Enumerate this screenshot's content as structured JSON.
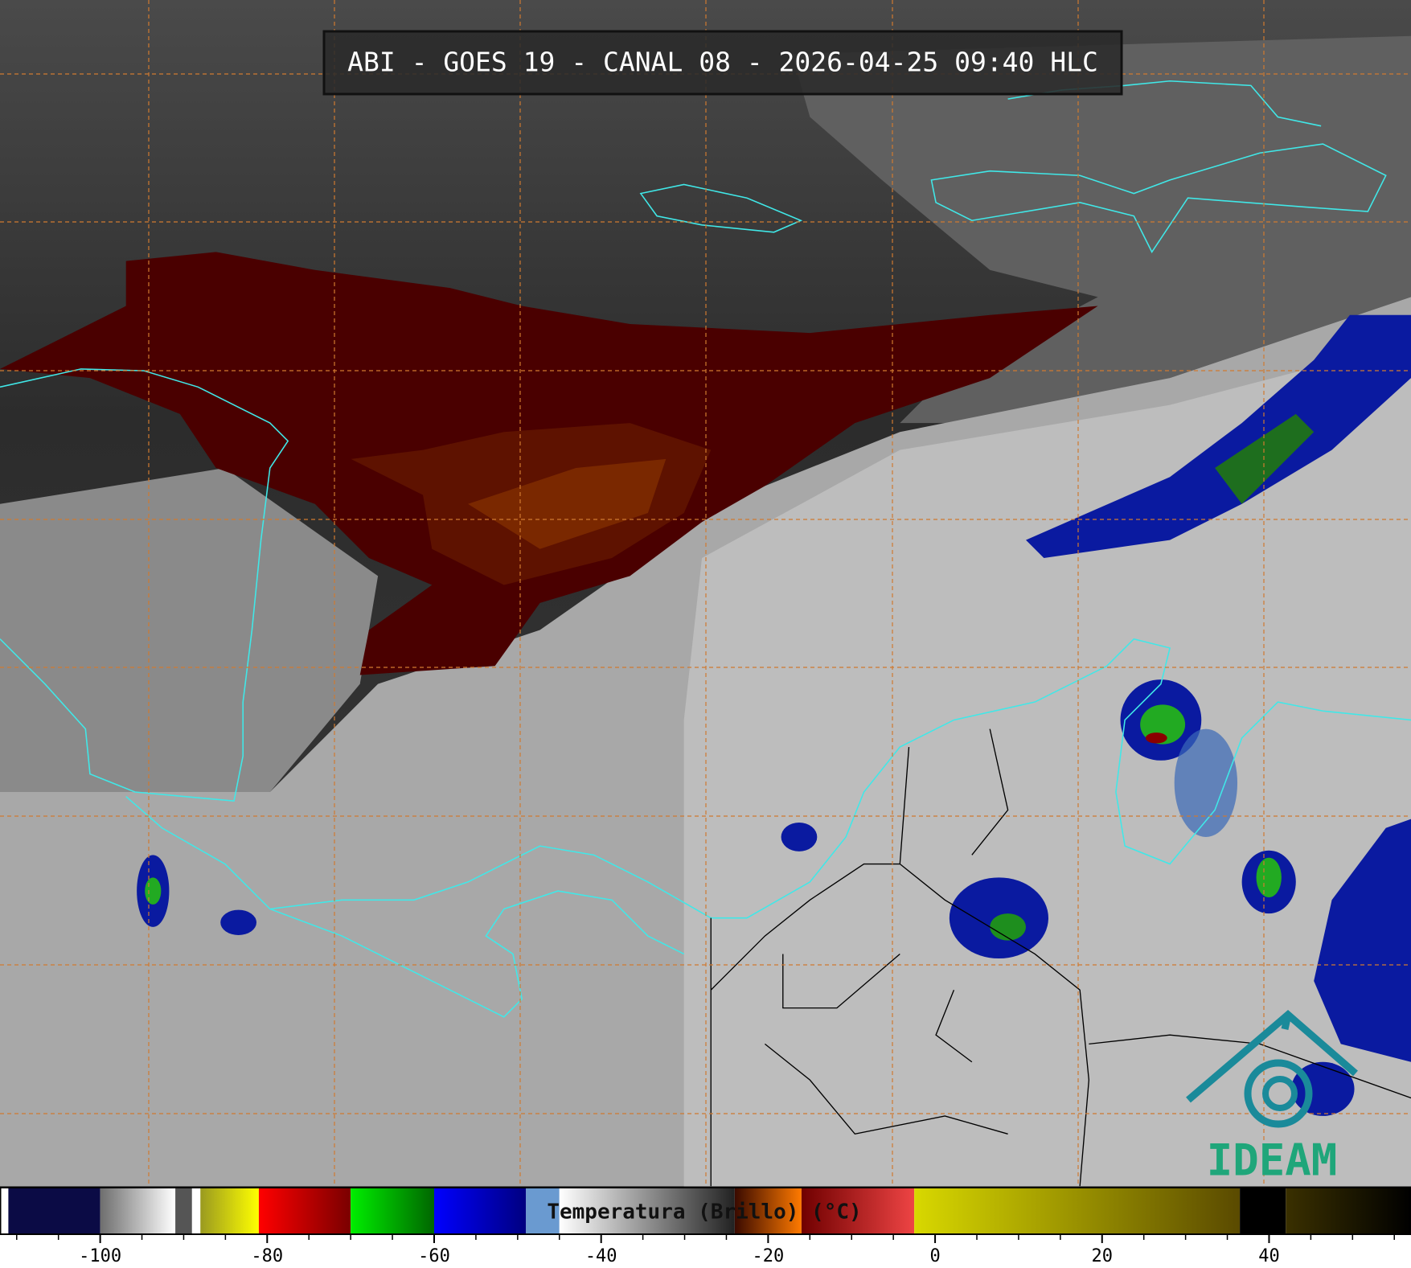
{
  "header": {
    "title": "ABI - GOES 19 - CANAL 08 - 2026-04-25 09:40 HLC"
  },
  "logo": {
    "text": "IDEAM"
  },
  "colorbar": {
    "label": "Temperatura (Brillo) (°C)",
    "lim": [
      -112,
      57
    ],
    "ticks": [
      -100,
      -80,
      -60,
      -40,
      -20,
      0,
      20,
      40
    ],
    "minor_ticks": [
      -110,
      -105,
      -95,
      -90,
      -85,
      -75,
      -70,
      -65,
      -55,
      -50,
      -45,
      -35,
      -30,
      -25,
      -15,
      -10,
      -5,
      5,
      10,
      15,
      25,
      30,
      35,
      45,
      50,
      55
    ],
    "segments": [
      {
        "from": -112,
        "to": -111,
        "colors": [
          "#ffffff",
          "#ffffff"
        ]
      },
      {
        "from": -111,
        "to": -100,
        "colors": [
          "#0b0b45",
          "#0b0b45"
        ]
      },
      {
        "from": -100,
        "to": -91,
        "colors": [
          "#6e6e6e",
          "#ffffff"
        ]
      },
      {
        "from": -91,
        "to": -89,
        "colors": [
          "#555555",
          "#555555"
        ]
      },
      {
        "from": -89,
        "to": -88,
        "colors": [
          "#ffffff",
          "#ffffff"
        ]
      },
      {
        "from": -88,
        "to": -81,
        "colors": [
          "#9a9a20",
          "#ffff00"
        ]
      },
      {
        "from": -81,
        "to": -70,
        "colors": [
          "#ff0000",
          "#7a0000"
        ]
      },
      {
        "from": -70,
        "to": -60,
        "colors": [
          "#00ee00",
          "#006600"
        ]
      },
      {
        "from": -60,
        "to": -49,
        "colors": [
          "#0000ff",
          "#000080"
        ]
      },
      {
        "from": -49,
        "to": -45,
        "colors": [
          "#6a9ad0",
          "#6a9ad0"
        ]
      },
      {
        "from": -45,
        "to": -24,
        "colors": [
          "#ffffff",
          "#222222"
        ]
      },
      {
        "from": -24,
        "to": -16,
        "colors": [
          "#3a0a00",
          "#ff7a00"
        ]
      },
      {
        "from": -16,
        "to": -2.5,
        "colors": [
          "#700000",
          "#ee4444"
        ]
      },
      {
        "from": -2.5,
        "to": 36.5,
        "colors": [
          "#d8d800",
          "#5a4a00"
        ]
      },
      {
        "from": 36.5,
        "to": 42,
        "colors": [
          "#000000",
          "#000000"
        ]
      },
      {
        "from": 42,
        "to": 57,
        "colors": [
          "#3a3000",
          "#000000"
        ]
      }
    ]
  }
}
